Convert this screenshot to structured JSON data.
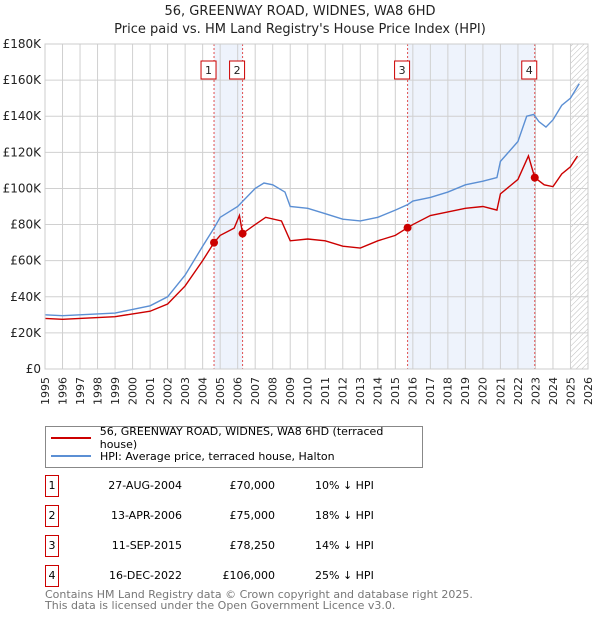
{
  "chart_data": {
    "type": "line",
    "title": "56, GREENWAY ROAD, WIDNES, WA8 6HD",
    "subtitle": "Price paid vs. HM Land Registry's House Price Index (HPI)",
    "xlim": [
      1995,
      2026
    ],
    "ylim": [
      0,
      180000
    ],
    "yticks": [
      "£0",
      "£20K",
      "£40K",
      "£60K",
      "£80K",
      "£100K",
      "£120K",
      "£140K",
      "£160K",
      "£180K"
    ],
    "xticks": [
      "1995",
      "1996",
      "1997",
      "1998",
      "1999",
      "2000",
      "2001",
      "2002",
      "2003",
      "2004",
      "2005",
      "2006",
      "2007",
      "2008",
      "2009",
      "2010",
      "2011",
      "2012",
      "2013",
      "2014",
      "2015",
      "2016",
      "2017",
      "2018",
      "2019",
      "2020",
      "2021",
      "2022",
      "2023",
      "2024",
      "2025",
      "2026"
    ],
    "series": [
      {
        "name": "56, GREENWAY ROAD, WIDNES, WA8 6HD (terraced house)",
        "color": "#cc0000",
        "x": [
          1995,
          1996,
          1997,
          1998,
          1999,
          2000,
          2001,
          2002,
          2003,
          2004,
          2004.65,
          2005,
          2005.8,
          2006.1,
          2006.28,
          2007,
          2007.6,
          2008.5,
          2009,
          2010,
          2011,
          2012,
          2013,
          2014,
          2015,
          2015.7,
          2016,
          2017,
          2018,
          2019,
          2020,
          2020.8,
          2021,
          2022,
          2022.6,
          2022.96,
          2023.5,
          2024,
          2024.5,
          2025,
          2025.4
        ],
        "y": [
          28000,
          27500,
          28000,
          28500,
          29000,
          30500,
          32000,
          36000,
          46000,
          60000,
          70000,
          74000,
          78000,
          85000,
          75000,
          80000,
          84000,
          82000,
          71000,
          72000,
          71000,
          68000,
          67000,
          71000,
          74000,
          78250,
          80000,
          85000,
          87000,
          89000,
          90000,
          88000,
          97000,
          105000,
          118000,
          106000,
          102000,
          101000,
          108000,
          112000,
          118000
        ]
      },
      {
        "name": "HPI: Average price, terraced house, Halton",
        "color": "#5b8fd4",
        "x": [
          1995,
          1996,
          1997,
          1998,
          1999,
          2000,
          2001,
          2002,
          2003,
          2004,
          2004.65,
          2005,
          2006,
          2007,
          2007.5,
          2008,
          2008.7,
          2009,
          2010,
          2011,
          2012,
          2013,
          2014,
          2015,
          2015.7,
          2016,
          2017,
          2018,
          2019,
          2020,
          2020.8,
          2021,
          2022,
          2022.5,
          2022.9,
          2023.2,
          2023.6,
          2024,
          2024.5,
          2025,
          2025.5
        ],
        "y": [
          30000,
          29500,
          30000,
          30500,
          31000,
          33000,
          35000,
          40000,
          52000,
          68000,
          78000,
          84000,
          90000,
          100000,
          103000,
          102000,
          98000,
          90000,
          89000,
          86000,
          83000,
          82000,
          84000,
          88000,
          91000,
          93000,
          95000,
          98000,
          102000,
          104000,
          106000,
          115000,
          126000,
          140000,
          141000,
          137000,
          134000,
          138000,
          146000,
          150000,
          158000
        ]
      }
    ],
    "sales": [
      {
        "label": "1",
        "x": 2004.65,
        "y": 70000
      },
      {
        "label": "2",
        "x": 2006.28,
        "y": 75000
      },
      {
        "label": "3",
        "x": 2015.7,
        "y": 78250
      },
      {
        "label": "4",
        "x": 2022.96,
        "y": 106000
      }
    ],
    "shaded": [
      [
        2004.65,
        2006.28
      ],
      [
        2015.7,
        2022.96
      ]
    ],
    "forecast_from": 2025.0,
    "legend": "below"
  },
  "table": [
    {
      "num": "1",
      "date": "27-AUG-2004",
      "price": "£70,000",
      "hpi": "10% ↓ HPI"
    },
    {
      "num": "2",
      "date": "13-APR-2006",
      "price": "£75,000",
      "hpi": "18% ↓ HPI"
    },
    {
      "num": "3",
      "date": "11-SEP-2015",
      "price": "£78,250",
      "hpi": "14% ↓ HPI"
    },
    {
      "num": "4",
      "date": "16-DEC-2022",
      "price": "£106,000",
      "hpi": "25% ↓ HPI"
    }
  ],
  "footer": {
    "line1": "Contains HM Land Registry data © Crown copyright and database right 2025.",
    "line2": "This data is licensed under the Open Government Licence v3.0."
  }
}
